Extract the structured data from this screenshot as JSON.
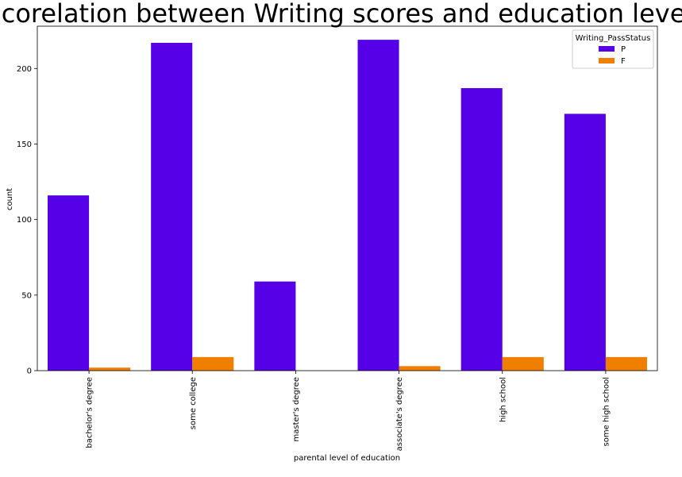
{
  "chart_data": {
    "type": "bar",
    "title": "corelation between Writing scores and education level",
    "xlabel": "parental level of education",
    "ylabel": "count",
    "categories": [
      "bachelor's degree",
      "some college",
      "master's degree",
      "associate's degree",
      "high school",
      "some high school"
    ],
    "series": [
      {
        "name": "P",
        "color": "#5500e6",
        "values": [
          116,
          217,
          59,
          219,
          187,
          170
        ]
      },
      {
        "name": "F",
        "color": "#f07f00",
        "values": [
          2,
          9,
          0,
          3,
          9,
          9
        ]
      }
    ],
    "ylim": [
      0,
      228
    ],
    "yticks": [
      0,
      50,
      100,
      150,
      200
    ],
    "legend": {
      "title": "Writing_PassStatus",
      "placement": "top-right"
    },
    "grid": false
  }
}
